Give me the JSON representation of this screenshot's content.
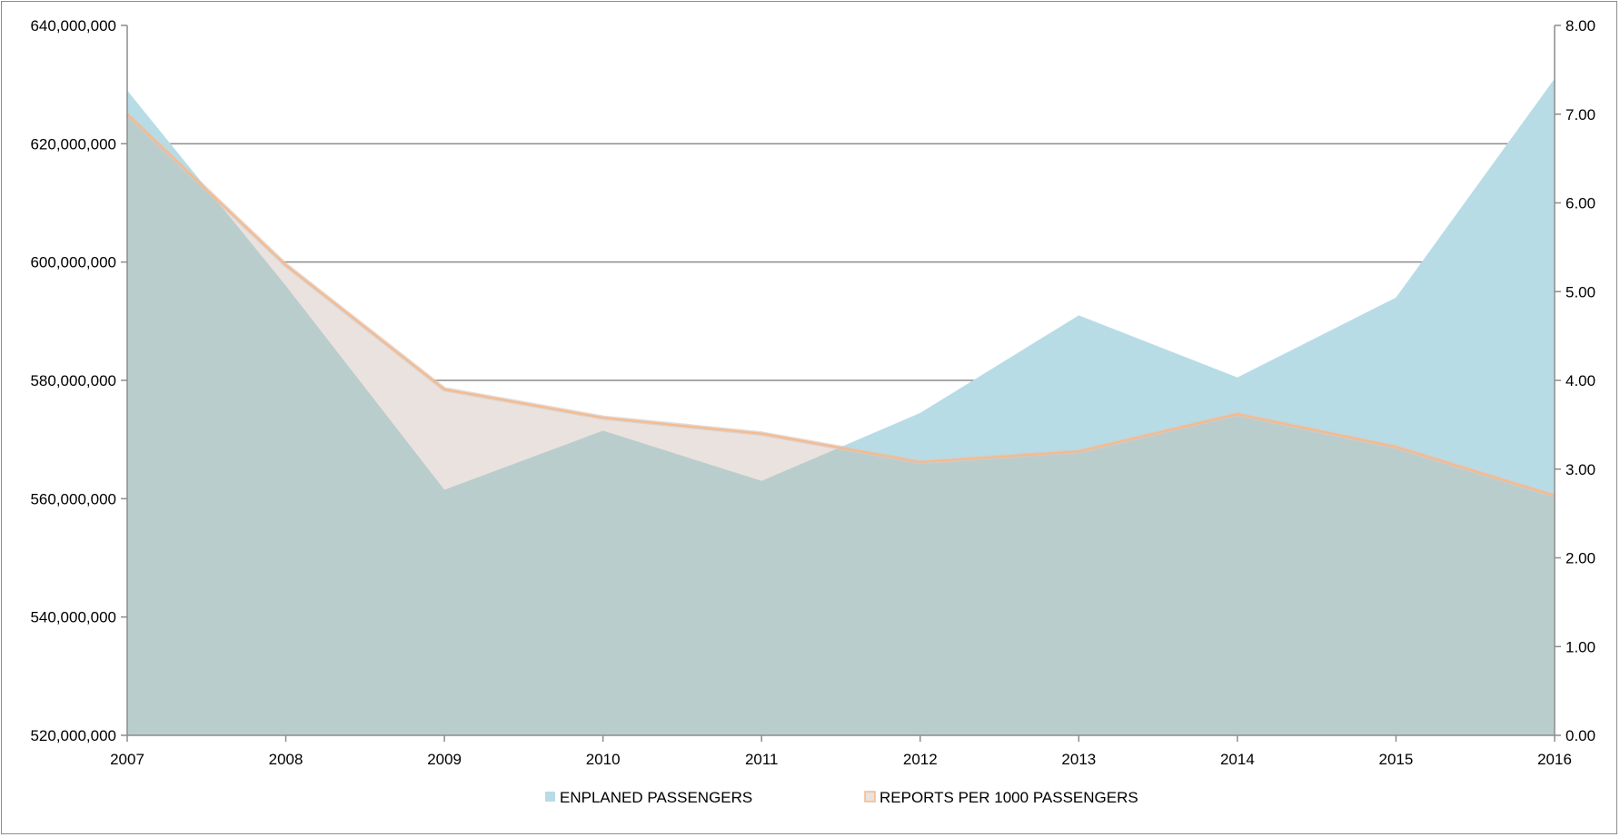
{
  "chart_data": {
    "type": "area",
    "title": "",
    "x": [
      "2007",
      "2008",
      "2009",
      "2010",
      "2011",
      "2012",
      "2013",
      "2014",
      "2015",
      "2016"
    ],
    "series": [
      {
        "name": "ENPLANED PASSENGERS",
        "axis": "left",
        "values": [
          629000000,
          596000000,
          561500000,
          571500000,
          563000000,
          574500000,
          591000000,
          580500000,
          594000000,
          631000000
        ],
        "fill_color": "#b8dce6"
      },
      {
        "name": "REPORTS PER 1000 PASSENGERS",
        "axis": "right",
        "values": [
          7.0,
          5.3,
          3.9,
          3.58,
          3.4,
          3.08,
          3.2,
          3.62,
          3.25,
          2.7
        ],
        "fill_color": "#eae2de",
        "line_color": "#f6b98a"
      }
    ],
    "y_left": {
      "min": 520000000,
      "max": 640000000,
      "ticks": [
        "520,000,000",
        "540,000,000",
        "560,000,000",
        "580,000,000",
        "600,000,000",
        "620,000,000",
        "640,000,000"
      ]
    },
    "y_right": {
      "min": 0,
      "max": 8,
      "ticks": [
        "0.00",
        "1.00",
        "2.00",
        "3.00",
        "4.00",
        "5.00",
        "6.00",
        "7.00",
        "8.00"
      ]
    },
    "overlap_color": "#bacdcd",
    "gridline_color": "#8c8c8c",
    "grid": true,
    "legend_position": "bottom"
  }
}
